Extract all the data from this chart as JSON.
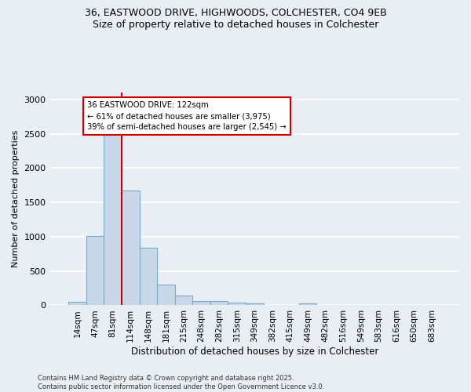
{
  "title_line1": "36, EASTWOOD DRIVE, HIGHWOODS, COLCHESTER, CO4 9EB",
  "title_line2": "Size of property relative to detached houses in Colchester",
  "xlabel": "Distribution of detached houses by size in Colchester",
  "ylabel": "Number of detached properties",
  "bar_values": [
    50,
    1005,
    2480,
    1670,
    840,
    300,
    140,
    60,
    60,
    40,
    25,
    0,
    0,
    30,
    0,
    0,
    0,
    0,
    0,
    0,
    0
  ],
  "categories": [
    "14sqm",
    "47sqm",
    "81sqm",
    "114sqm",
    "148sqm",
    "181sqm",
    "215sqm",
    "248sqm",
    "282sqm",
    "315sqm",
    "349sqm",
    "382sqm",
    "415sqm",
    "449sqm",
    "482sqm",
    "516sqm",
    "549sqm",
    "583sqm",
    "616sqm",
    "650sqm",
    "683sqm"
  ],
  "bar_color": "#c8d8e8",
  "bar_edge_color": "#7aa8c8",
  "property_bin_index": 3,
  "red_line_color": "#cc0000",
  "annotation_text": "36 EASTWOOD DRIVE: 122sqm\n← 61% of detached houses are smaller (3,975)\n39% of semi-detached houses are larger (2,545) →",
  "annotation_box_color": "#ffffff",
  "annotation_border_color": "#cc0000",
  "ylim": [
    0,
    3100
  ],
  "yticks": [
    0,
    500,
    1000,
    1500,
    2000,
    2500,
    3000
  ],
  "background_color": "#e8eef4",
  "grid_color": "#ffffff",
  "footer_line1": "Contains HM Land Registry data © Crown copyright and database right 2025.",
  "footer_line2": "Contains public sector information licensed under the Open Government Licence v3.0."
}
